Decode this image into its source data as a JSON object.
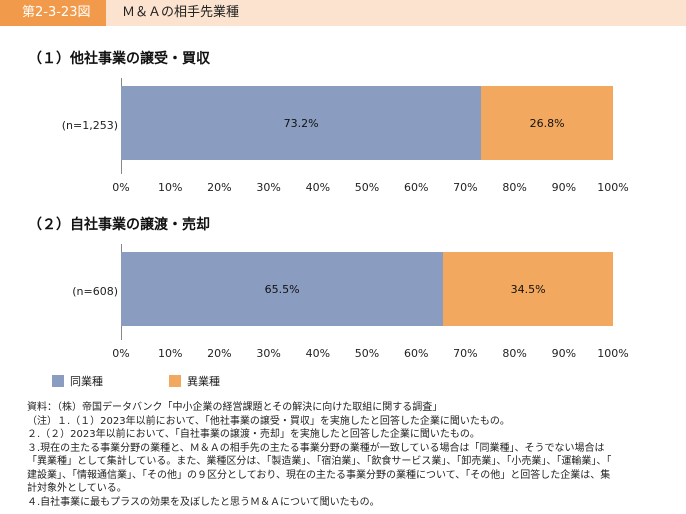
{
  "figure_number": "第2-3-23図",
  "figure_title": "Ｍ＆Ａの相手先業種",
  "colors": {
    "same": "#8a9dc0",
    "different": "#f2a85e",
    "header_orange": "#f29a4b",
    "header_band": "#fbe3cf"
  },
  "chart_data": [
    {
      "type": "bar",
      "orientation": "horizontal-stacked-percent",
      "title": "（１）他社事業の譲受・買収",
      "categories": [
        "(n=1,253)"
      ],
      "series": [
        {
          "name": "同業種",
          "values": [
            73.2
          ],
          "label": "73.2%"
        },
        {
          "name": "異業種",
          "values": [
            26.8
          ],
          "label": "26.8%"
        }
      ],
      "xlim": [
        0,
        100
      ],
      "ticks": [
        "0%",
        "10%",
        "20%",
        "30%",
        "40%",
        "50%",
        "60%",
        "70%",
        "80%",
        "90%",
        "100%"
      ]
    },
    {
      "type": "bar",
      "orientation": "horizontal-stacked-percent",
      "title": "（２）自社事業の譲渡・売却",
      "categories": [
        "(n=608)"
      ],
      "series": [
        {
          "name": "同業種",
          "values": [
            65.5
          ],
          "label": "65.5%"
        },
        {
          "name": "異業種",
          "values": [
            34.5
          ],
          "label": "34.5%"
        }
      ],
      "xlim": [
        0,
        100
      ],
      "ticks": [
        "0%",
        "10%",
        "20%",
        "30%",
        "40%",
        "50%",
        "60%",
        "70%",
        "80%",
        "90%",
        "100%"
      ]
    }
  ],
  "legend": [
    {
      "label": "同業種",
      "color": "#8a9dc0"
    },
    {
      "label": "異業種",
      "color": "#f2a85e"
    }
  ],
  "notes": [
    "資料：（株）帝国データバンク「中小企業の経営課題とその解決に向けた取組に関する調査」",
    "（注）１.（１）2023年以前において、「他社事業の譲受・買収」を実施したと回答した企業に聞いたもの。",
    "２.（２）2023年以前において、「自社事業の譲渡・売却」を実施したと回答した企業に聞いたもの。",
    "３.現在の主たる事業分野の業種と、Ｍ＆Ａの相手先の主たる事業分野の業種が一致している場合は「同業種」、そうでない場合は",
    "「異業種」として集計している。また、業種区分は、「製造業」、「宿泊業」、「飲食サービス業」、「卸売業」、「小売業」、「運輸業」、「",
    "建設業」、「情報通信業」、「その他」の９区分としており、現在の主たる事業分野の業種について、「その他」と回答した企業は、集",
    "計対象外としている。",
    "４.自社事業に最もプラスの効果を及ぼしたと思うＭ＆Ａについて聞いたもの。"
  ]
}
